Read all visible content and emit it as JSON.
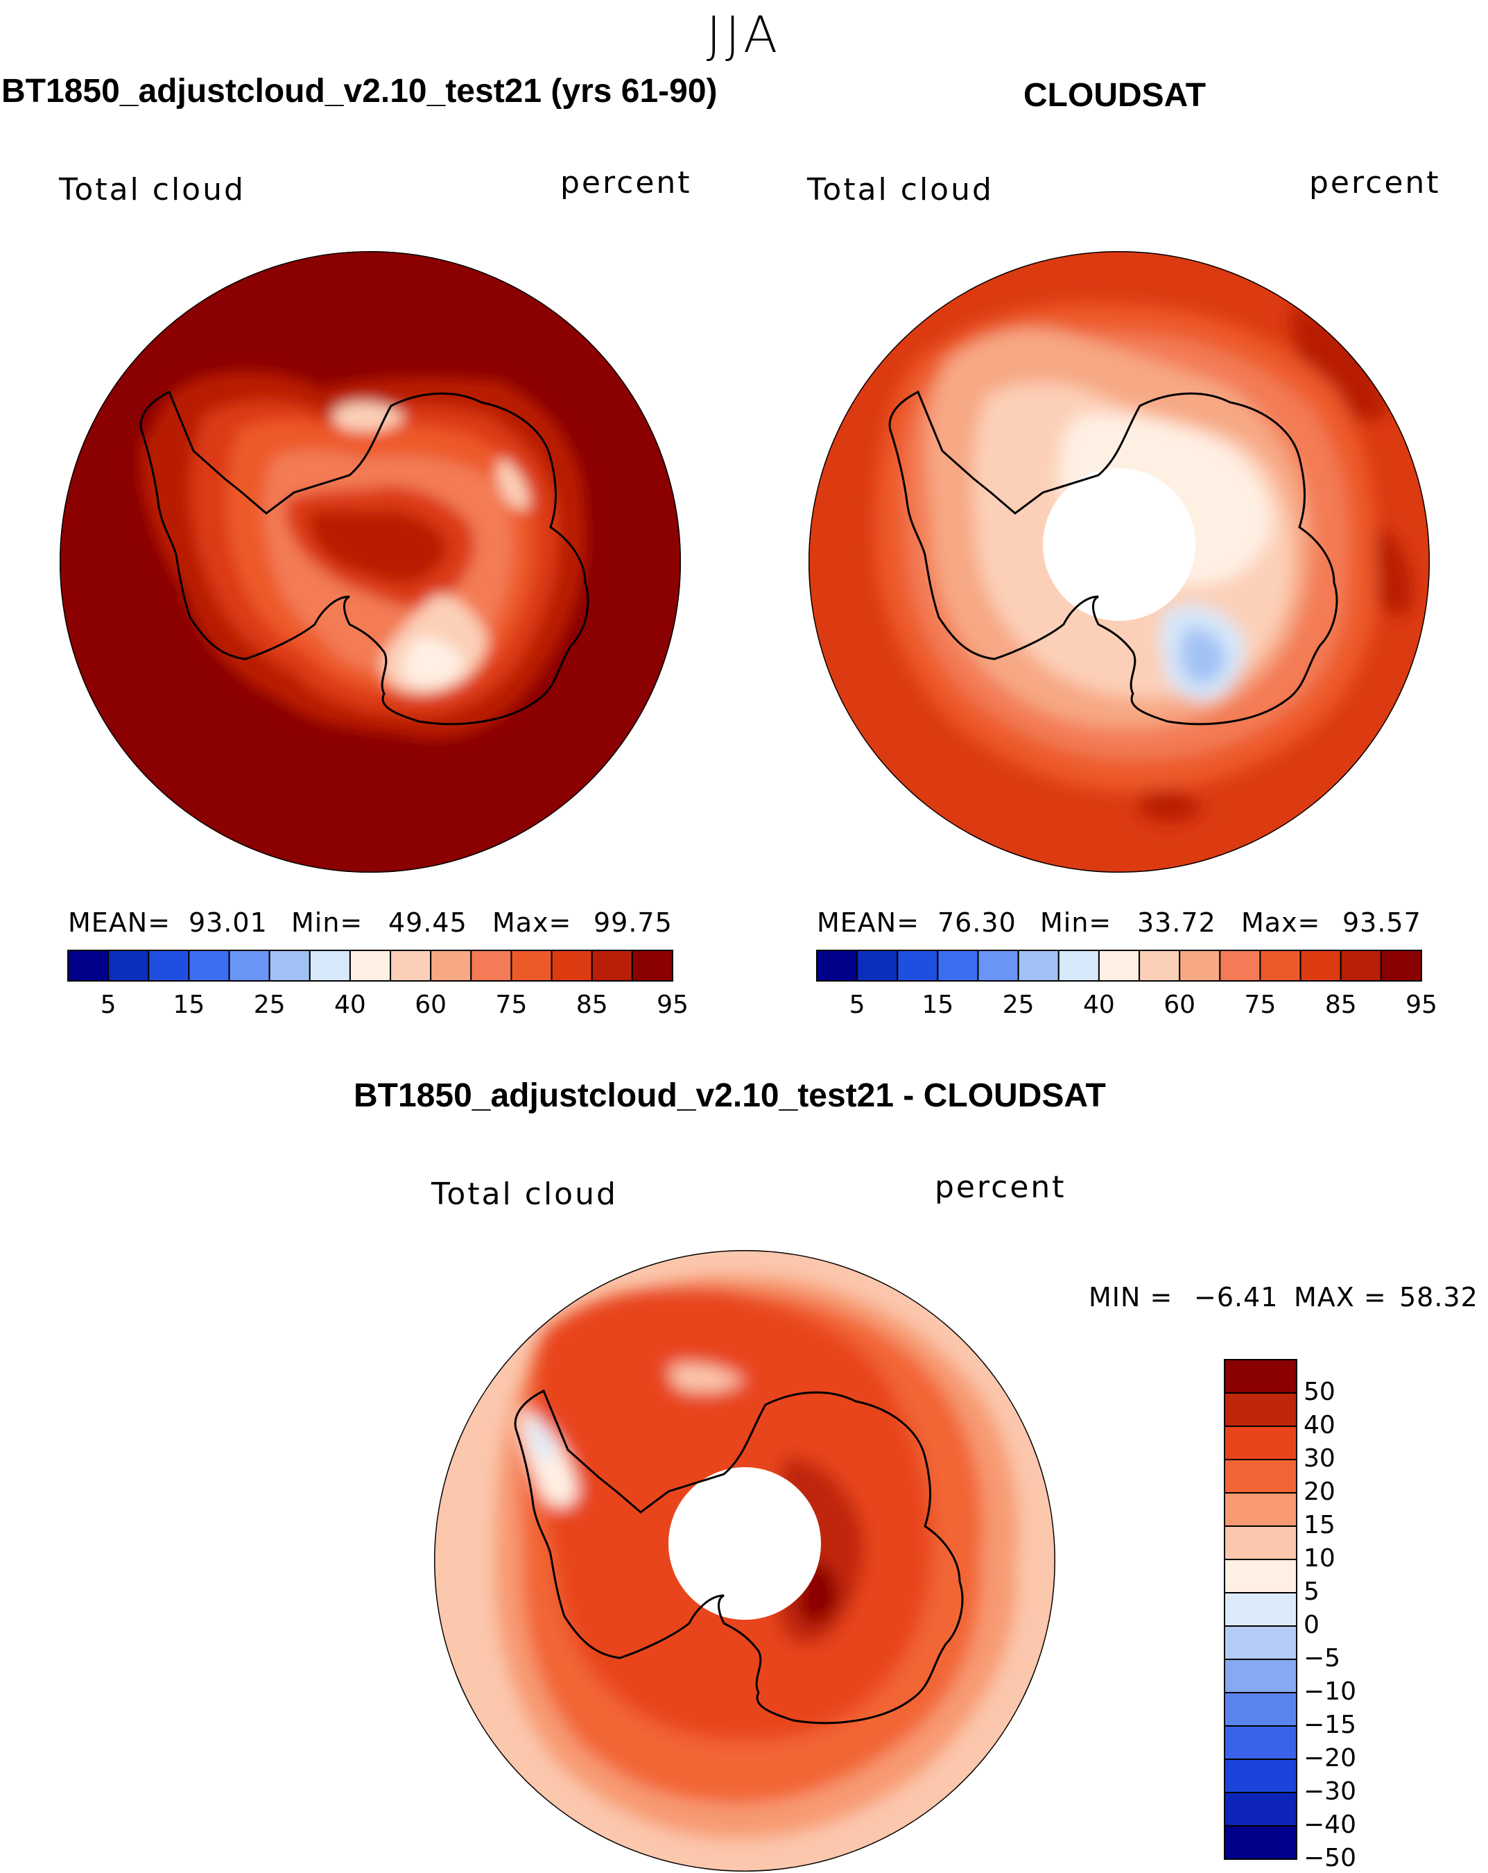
{
  "season": "JJA",
  "panels": [
    {
      "title": "BT1850_adjustcloud_v2.10_test21 (yrs 61-90)",
      "left_label": "Total cloud",
      "right_label": "percent",
      "mean_label": "MEAN=",
      "mean": "93.01",
      "min_label": "Min=",
      "min": "49.45",
      "max_label": "Max=",
      "max": "99.75",
      "colorbar_ticks": [
        "5",
        "15",
        "25",
        "40",
        "60",
        "75",
        "85",
        "95"
      ]
    },
    {
      "title": "CLOUDSAT",
      "left_label": "Total cloud",
      "right_label": "percent",
      "mean_label": "MEAN=",
      "mean": "76.30",
      "min_label": "Min=",
      "min": "33.72",
      "max_label": "Max=",
      "max": "93.57",
      "colorbar_ticks": [
        "5",
        "15",
        "25",
        "40",
        "60",
        "75",
        "85",
        "95"
      ]
    },
    {
      "title": "BT1850_adjustcloud_v2.10_test21 - CLOUDSAT",
      "left_label": "Total cloud",
      "right_label": "percent",
      "min_label": "MIN =",
      "min": "−6.41",
      "max_label": "MAX =",
      "max": "58.32",
      "colorbar_ticks": [
        "50",
        "40",
        "30",
        "20",
        "15",
        "10",
        "5",
        "0",
        "−5",
        "−10",
        "−15",
        "−20",
        "−30",
        "−40",
        "−50"
      ]
    }
  ],
  "chart_data": [
    {
      "type": "heatmap",
      "projection": "south polar stereographic",
      "title": "BT1850_adjustcloud_v2.10_test21 (yrs 61-90)",
      "variable": "Total cloud",
      "units": "percent",
      "mean": 93.01,
      "min": 49.45,
      "max": 99.75,
      "contour_levels": [
        5,
        10,
        15,
        20,
        25,
        30,
        40,
        50,
        60,
        70,
        75,
        80,
        85,
        90,
        95
      ],
      "colors": [
        "#00008b",
        "#0a2fbd",
        "#1f4fe0",
        "#3c6ef2",
        "#6b95f5",
        "#a2c1f5",
        "#d6e8fa",
        "#fff0e4",
        "#fcd0b8",
        "#f7a884",
        "#f37b55",
        "#ed5a2a",
        "#dc3b12",
        "#b81f06",
        "#8b0000"
      ]
    },
    {
      "type": "heatmap",
      "projection": "south polar stereographic",
      "title": "CLOUDSAT",
      "variable": "Total cloud",
      "units": "percent",
      "mean": 76.3,
      "min": 33.72,
      "max": 93.57,
      "contour_levels": [
        5,
        10,
        15,
        20,
        25,
        30,
        40,
        50,
        60,
        70,
        75,
        80,
        85,
        90,
        95
      ],
      "colors": [
        "#00008b",
        "#0a2fbd",
        "#1f4fe0",
        "#3c6ef2",
        "#6b95f5",
        "#a2c1f5",
        "#d6e8fa",
        "#fff0e4",
        "#fcd0b8",
        "#f7a884",
        "#f37b55",
        "#ed5a2a",
        "#dc3b12",
        "#b81f06",
        "#8b0000"
      ]
    },
    {
      "type": "heatmap",
      "projection": "south polar stereographic",
      "title": "BT1850_adjustcloud_v2.10_test21 - CLOUDSAT",
      "variable": "Total cloud",
      "units": "percent",
      "min": -6.41,
      "max": 58.32,
      "contour_levels": [
        50,
        40,
        30,
        20,
        15,
        10,
        5,
        0,
        -5,
        -10,
        -15,
        -20,
        -30,
        -40,
        -50
      ],
      "colors": [
        "#8b0000",
        "#c0260a",
        "#e8451c",
        "#f26536",
        "#f79a72",
        "#fbc7ad",
        "#fff0e4",
        "#dcebfa",
        "#b4ccf5",
        "#87a9f2",
        "#5b84ee",
        "#3a63ea",
        "#1c44dc",
        "#0c24b8",
        "#00008b"
      ]
    }
  ]
}
